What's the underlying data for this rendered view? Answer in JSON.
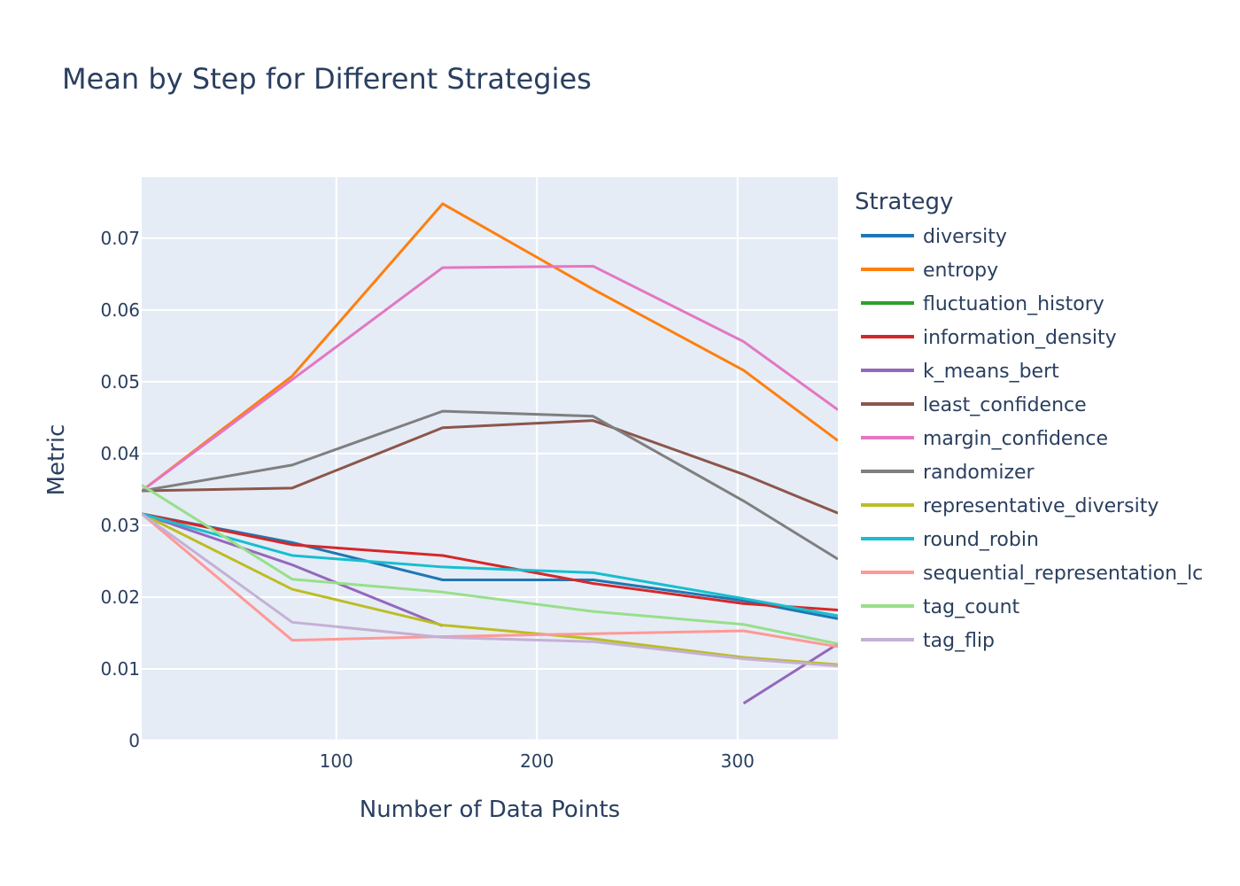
{
  "chart_data": {
    "type": "line",
    "title": "Mean by Step for Different Strategies",
    "xlabel": "Number of Data Points",
    "ylabel": "Metric",
    "xlim": [
      3,
      350
    ],
    "ylim": [
      0,
      0.0785
    ],
    "xticks": [
      100,
      200,
      300
    ],
    "yticks": [
      0,
      0.01,
      0.02,
      0.03,
      0.04,
      0.05,
      0.06,
      0.07
    ],
    "ytick_labels": [
      "0",
      "0.01",
      "0.02",
      "0.03",
      "0.04",
      "0.05",
      "0.06",
      "0.07"
    ],
    "xtick_labels": [
      "100",
      "200",
      "300"
    ],
    "grid": true,
    "legend_title": "Strategy",
    "legend_position": "right",
    "series": [
      {
        "name": "diversity",
        "color": "#1f77b4",
        "x": [
          3,
          78,
          153,
          228,
          303,
          350
        ],
        "y": [
          0.0316,
          0.0276,
          0.0224,
          0.0224,
          0.0195,
          0.017
        ]
      },
      {
        "name": "entropy",
        "color": "#ff7f0e",
        "x": [
          3,
          78,
          153,
          228,
          303,
          350
        ],
        "y": [
          0.0348,
          0.0508,
          0.0748,
          0.0629,
          0.0516,
          0.0418
        ]
      },
      {
        "name": "fluctuation_history",
        "color": "#2ca02c",
        "x": [],
        "y": []
      },
      {
        "name": "information_density",
        "color": "#d62728",
        "x": [
          3,
          78,
          153,
          228,
          303,
          350
        ],
        "y": [
          0.0316,
          0.0273,
          0.0258,
          0.0219,
          0.0191,
          0.0182
        ]
      },
      {
        "name": "k_means_bert",
        "color": "#9467bd",
        "x": [
          3,
          78,
          153
        ],
        "y": [
          0.0316,
          0.0245,
          0.016
        ],
        "x2": [
          303,
          350
        ],
        "y2": [
          0.0052,
          0.0135
        ]
      },
      {
        "name": "least_confidence",
        "color": "#8c564b",
        "x": [
          3,
          78,
          153,
          228,
          303,
          350
        ],
        "y": [
          0.0348,
          0.0352,
          0.0436,
          0.0446,
          0.0371,
          0.0317
        ]
      },
      {
        "name": "margin_confidence",
        "color": "#e377c2",
        "x": [
          3,
          78,
          153,
          228,
          303,
          350
        ],
        "y": [
          0.0348,
          0.0503,
          0.0659,
          0.0661,
          0.0556,
          0.0461
        ]
      },
      {
        "name": "randomizer",
        "color": "#7f7f7f",
        "x": [
          3,
          78,
          153,
          228,
          303,
          350
        ],
        "y": [
          0.0348,
          0.0384,
          0.0459,
          0.0452,
          0.0334,
          0.0253
        ]
      },
      {
        "name": "representative_diversity",
        "color": "#bcbd22",
        "x": [
          3,
          78,
          153,
          228,
          303,
          350
        ],
        "y": [
          0.0316,
          0.0211,
          0.0161,
          0.0142,
          0.0116,
          0.0106
        ]
      },
      {
        "name": "round_robin",
        "color": "#17becf",
        "x": [
          3,
          78,
          153,
          228,
          303,
          350
        ],
        "y": [
          0.0316,
          0.0258,
          0.0242,
          0.0234,
          0.0198,
          0.0174
        ]
      },
      {
        "name": "sequential_representation_lc",
        "color": "#ff9896",
        "x": [
          3,
          78,
          153,
          228,
          303,
          350
        ],
        "y": [
          0.0316,
          0.014,
          0.0145,
          0.0149,
          0.0153,
          0.0131
        ]
      },
      {
        "name": "tag_count",
        "color": "#98df8a",
        "x": [
          3,
          78,
          153,
          228,
          303,
          350
        ],
        "y": [
          0.0356,
          0.0225,
          0.0207,
          0.018,
          0.0162,
          0.0135
        ]
      },
      {
        "name": "tag_flip",
        "color": "#c5b0d5",
        "x": [
          3,
          78,
          153,
          228,
          303,
          350
        ],
        "y": [
          0.0316,
          0.0165,
          0.0144,
          0.0138,
          0.0114,
          0.0104
        ]
      }
    ]
  }
}
